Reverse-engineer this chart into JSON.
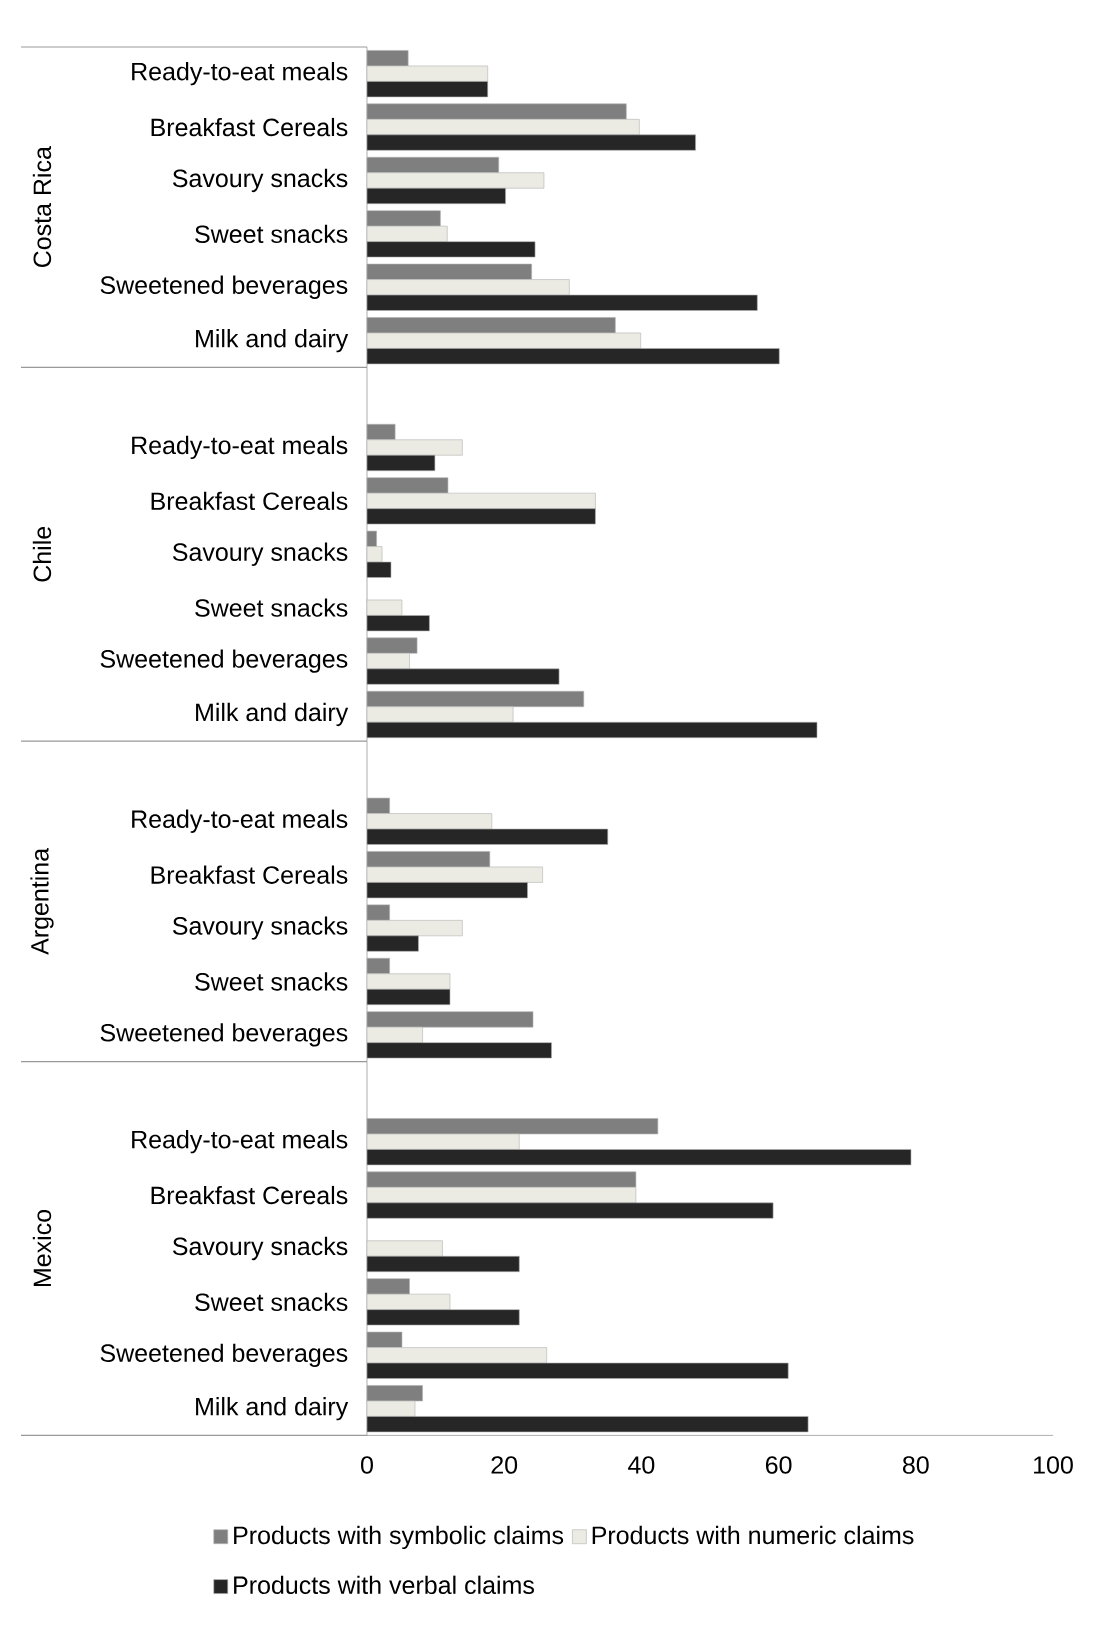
{
  "chart_data": [
    {
      "type": "bar",
      "orientation": "horizontal",
      "ylabel": "Costa Rica",
      "categories": [
        "Ready-to-eat meals",
        "Breakfast Cereals",
        "Savoury snacks",
        "Sweet snacks",
        "Sweetened beverages",
        "Milk and dairy"
      ],
      "series": [
        {
          "color": "#7f7f7f",
          "values": [
            6,
            37.8,
            19.2,
            10.7,
            24,
            36.2
          ]
        },
        {
          "color": "#ebebe3",
          "values": [
            17.6,
            39.7,
            25.8,
            11.7,
            29.5,
            39.9
          ]
        },
        {
          "color": "#262626",
          "values": [
            17.6,
            47.9,
            20.2,
            24.5,
            56.9,
            60.1
          ]
        }
      ],
      "xlim": [
        0,
        100
      ],
      "xticks": [
        0,
        20,
        40,
        60,
        80,
        100
      ],
      "tick_labels": "y"
    },
    {
      "type": "bar",
      "orientation": "horizontal",
      "ylabel": "Chile",
      "categories": [
        null,
        "Ready-to-eat meals",
        "Breakfast Cereals",
        "Savoury snacks",
        "Sweet snacks",
        "Sweetened beverages",
        "Milk and dairy"
      ],
      "series": [
        {
          "color": "#7f7f7f",
          "values": [
            null,
            4.1,
            11.8,
            1.4,
            null,
            7.3,
            31.6
          ]
        },
        {
          "color": "#ebebe3",
          "values": [
            null,
            13.9,
            33.3,
            2.2,
            5.1,
            6.2,
            21.3
          ]
        },
        {
          "color": "#262626",
          "values": [
            null,
            9.9,
            33.3,
            3.5,
            9.1,
            28,
            65.6
          ]
        }
      ],
      "xlim": [
        0,
        100
      ],
      "xticks": [
        0,
        20,
        40,
        60,
        80,
        100
      ],
      "tick_labels": "y"
    },
    {
      "type": "bar",
      "orientation": "horizontal",
      "ylabel": "Argentina",
      "categories": [
        null,
        "Ready-to-eat meals",
        "Breakfast Cereals",
        "Savoury snacks",
        "Sweet snacks",
        "Sweetened beverages"
      ],
      "series": [
        {
          "color": "#7f7f7f",
          "values": [
            null,
            3.3,
            17.9,
            3.3,
            3.3,
            24.2
          ]
        },
        {
          "color": "#ebebe3",
          "values": [
            null,
            18.2,
            25.6,
            13.9,
            12.1,
            8.1
          ]
        },
        {
          "color": "#262626",
          "values": [
            null,
            35.1,
            23.4,
            7.5,
            12.1,
            26.9
          ]
        }
      ],
      "xlim": [
        0,
        100
      ],
      "xticks": [
        0,
        20,
        40,
        60,
        80,
        100
      ],
      "tick_labels": "y"
    },
    {
      "type": "bar",
      "orientation": "horizontal",
      "ylabel": "Mexico",
      "categories": [
        null,
        "Ready-to-eat meals",
        "Breakfast Cereals",
        "Savoury snacks",
        "Sweet snacks",
        "Sweetened beverages",
        "Milk and dairy"
      ],
      "series": [
        {
          "name": "Products with symbolic claims",
          "color": "#7f7f7f",
          "values": [
            null,
            42.4,
            39.2,
            null,
            6.2,
            5.1,
            8.1
          ]
        },
        {
          "name": "Products with numeric claims",
          "color": "#ebebe3",
          "values": [
            null,
            22.2,
            39.2,
            11,
            12.1,
            26.2,
            7
          ]
        },
        {
          "name": "Products with verbal claims",
          "color": "#262626",
          "values": [
            null,
            79.3,
            59.2,
            22.2,
            22.2,
            61.4,
            64.3
          ]
        }
      ],
      "xlim": [
        0,
        100
      ],
      "xticks": [
        0,
        20,
        40,
        60,
        80,
        100
      ],
      "legend": "bottom"
    }
  ]
}
